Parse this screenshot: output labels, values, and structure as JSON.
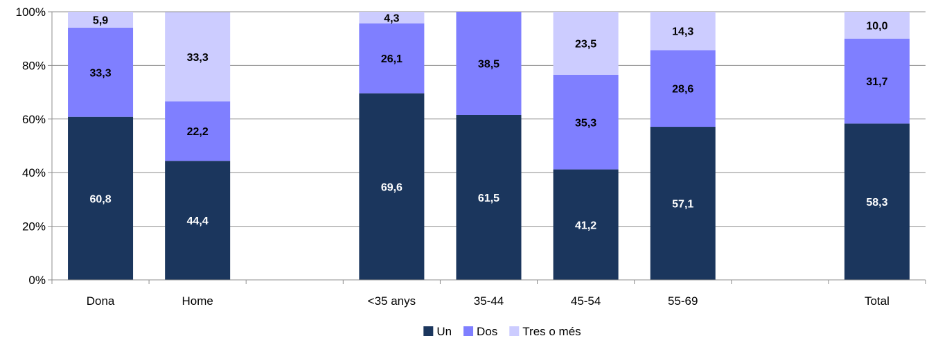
{
  "chart_data": {
    "type": "bar",
    "stacked": true,
    "percent_stacked": true,
    "categories": [
      "Dona",
      "Home",
      "",
      "<35 anys",
      "35-44",
      "45-54",
      "55-69",
      "",
      "Total"
    ],
    "series": [
      {
        "name": "Un",
        "color": "#1b365d",
        "label_color": "#ffffff",
        "values": [
          60.8,
          44.4,
          null,
          69.6,
          61.5,
          41.2,
          57.1,
          null,
          58.3
        ],
        "labels": [
          "60,8",
          "44,4",
          "",
          "69,6",
          "61,5",
          "41,2",
          "57,1",
          "",
          "58,3"
        ]
      },
      {
        "name": "Dos",
        "color": "#7f7fff",
        "label_color": "#000000",
        "values": [
          33.3,
          22.2,
          null,
          26.1,
          38.5,
          35.3,
          28.6,
          null,
          31.7
        ],
        "labels": [
          "33,3",
          "22,2",
          "",
          "26,1",
          "38,5",
          "35,3",
          "28,6",
          "",
          "31,7"
        ]
      },
      {
        "name": "Tres o més",
        "color": "#ccccff",
        "label_color": "#000000",
        "values": [
          5.9,
          33.3,
          null,
          4.3,
          0,
          23.5,
          14.3,
          null,
          10.0
        ],
        "labels": [
          "5,9",
          "33,3",
          "",
          "4,3",
          "",
          "23,5",
          "14,3",
          "",
          "10,0"
        ]
      }
    ],
    "y_ticks": [
      "0%",
      "20%",
      "40%",
      "60%",
      "80%",
      "100%"
    ],
    "ylim": [
      0,
      100
    ],
    "grid": true,
    "legend_position": "bottom-center"
  }
}
